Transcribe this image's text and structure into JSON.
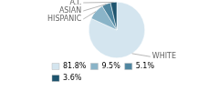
{
  "chart_data": {
    "type": "pie",
    "categories": [
      "WHITE",
      "HISPANIC",
      "ASIAN",
      "A.I."
    ],
    "values": [
      81.8,
      9.5,
      5.1,
      3.6
    ],
    "colors": [
      "#d4e5ef",
      "#8ab4c8",
      "#4f86a0",
      "#1e546e"
    ],
    "value_labels": [
      "81.8%",
      "9.5%",
      "5.1%",
      "3.6%"
    ],
    "legend": "bottom"
  }
}
